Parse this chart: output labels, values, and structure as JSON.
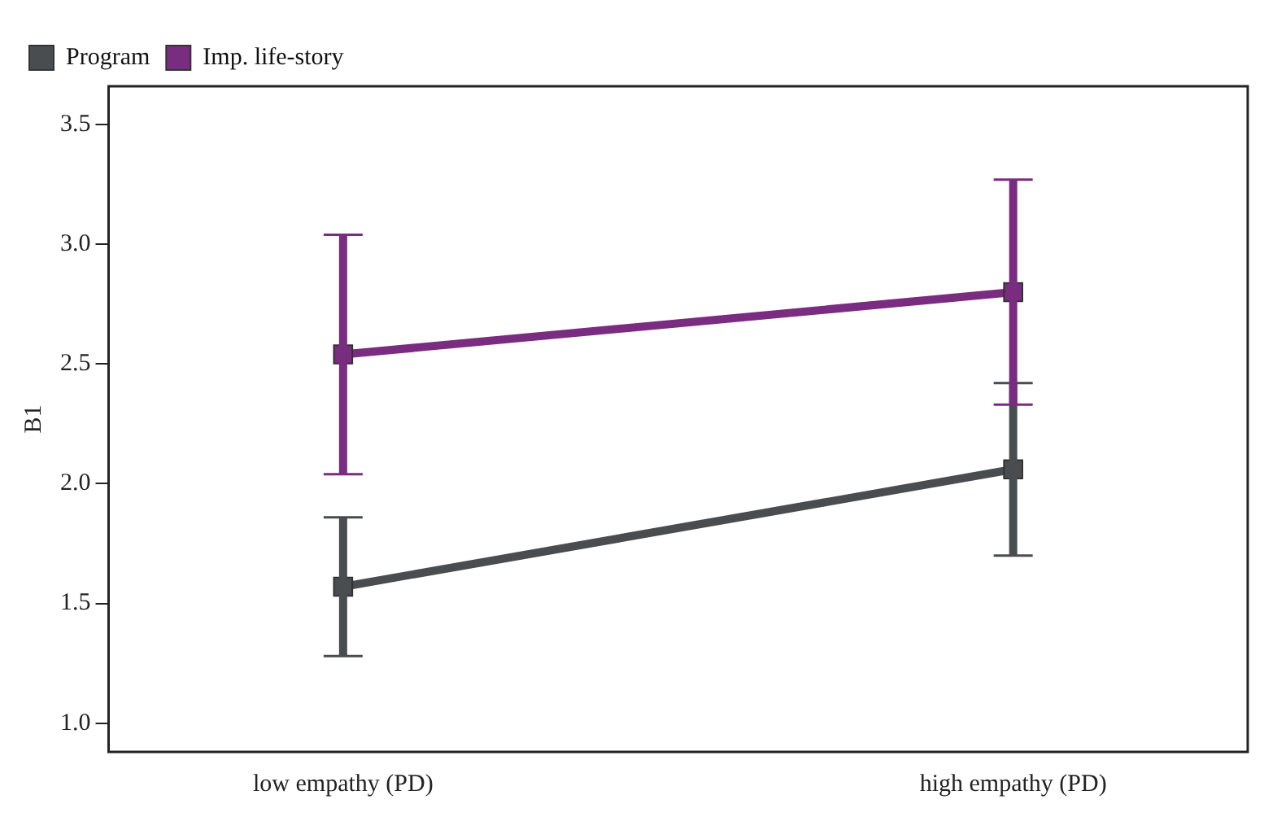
{
  "chart_data": {
    "type": "line",
    "ylabel": "B1",
    "categories": [
      "low empathy (PD)",
      "high empathy (PD)"
    ],
    "series": [
      {
        "name": "Program",
        "color": "#4a4d50",
        "values": [
          1.57,
          2.06
        ],
        "errors": [
          0.29,
          0.36
        ]
      },
      {
        "name": "Imp. life-story",
        "color": "#7a2c80",
        "values": [
          2.54,
          2.8
        ],
        "errors": [
          0.5,
          0.47
        ]
      }
    ],
    "ylim": [
      0.88,
      3.66
    ],
    "yticks": [
      {
        "value": 1,
        "label": "1.0"
      },
      1.5,
      {
        "value": 2,
        "label": "2.0"
      },
      2.5,
      {
        "value": 3,
        "label": "3.0"
      },
      3.5
    ],
    "grid": false,
    "legend": "top left",
    "marker": "square",
    "line_style": "solid"
  }
}
